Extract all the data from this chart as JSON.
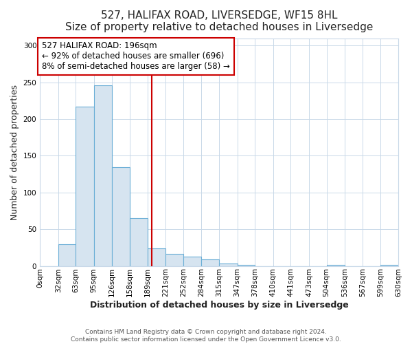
{
  "title": "527, HALIFAX ROAD, LIVERSEDGE, WF15 8HL",
  "subtitle": "Size of property relative to detached houses in Liversedge",
  "xlabel": "Distribution of detached houses by size in Liversedge",
  "ylabel": "Number of detached properties",
  "bin_edges": [
    0,
    32,
    63,
    95,
    126,
    158,
    189,
    221,
    252,
    284,
    315,
    347,
    378,
    410,
    441,
    473,
    504,
    536,
    567,
    599,
    630
  ],
  "bin_counts": [
    0,
    30,
    217,
    246,
    134,
    65,
    24,
    16,
    13,
    9,
    3,
    1,
    0,
    0,
    0,
    0,
    1,
    0,
    0,
    1
  ],
  "bar_facecolor": "#d6e4f0",
  "bar_edgecolor": "#6aaed6",
  "vline_x": 196,
  "vline_color": "#cc0000",
  "annotation_text": "527 HALIFAX ROAD: 196sqm\n← 92% of detached houses are smaller (696)\n8% of semi-detached houses are larger (58) →",
  "annotation_box_edgecolor": "#cc0000",
  "annotation_box_facecolor": "#ffffff",
  "ylim": [
    0,
    310
  ],
  "tick_labels": [
    "0sqm",
    "32sqm",
    "63sqm",
    "95sqm",
    "126sqm",
    "158sqm",
    "189sqm",
    "221sqm",
    "252sqm",
    "284sqm",
    "315sqm",
    "347sqm",
    "378sqm",
    "410sqm",
    "441sqm",
    "473sqm",
    "504sqm",
    "536sqm",
    "567sqm",
    "599sqm",
    "630sqm"
  ],
  "footer_line1": "Contains HM Land Registry data © Crown copyright and database right 2024.",
  "footer_line2": "Contains public sector information licensed under the Open Government Licence v3.0.",
  "background_color": "#ffffff",
  "plot_bg_color": "#ffffff",
  "grid_color": "#c8d8e8",
  "title_fontsize": 11,
  "subtitle_fontsize": 9.5,
  "axis_label_fontsize": 9,
  "tick_fontsize": 7.5,
  "footer_fontsize": 6.5
}
